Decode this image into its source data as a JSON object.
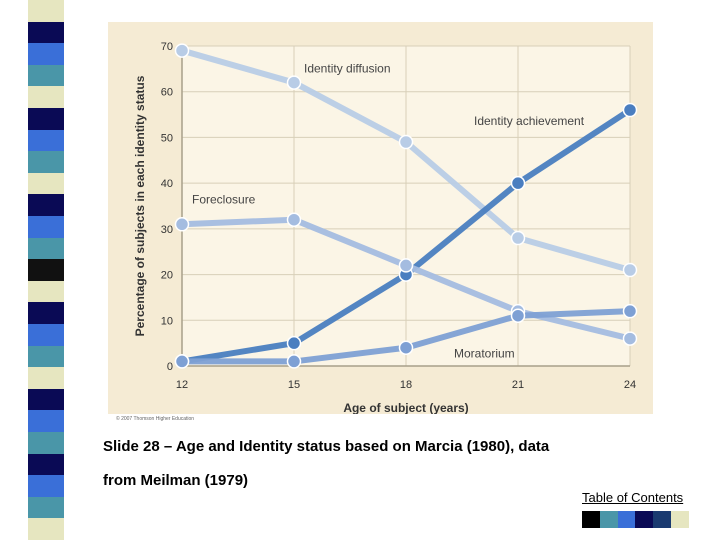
{
  "slide": {
    "caption_line1": "Slide 28 – Age and Identity status based on Marcia (1980), data",
    "caption_line2": "from Meilman (1979)",
    "toc_link": "Table of Contents",
    "copyright": "© 2007 Thomson Higher Education"
  },
  "decor": {
    "stripe_colors": [
      "#e6e6c0",
      "#0a0a55",
      "#3a6fd8",
      "#4a96a8",
      "#e6e6c0",
      "#0a0a55",
      "#3a6fd8",
      "#4a96a8",
      "#e6e6c0",
      "#0a0a55",
      "#3a6fd8",
      "#4a96a8",
      "#111111",
      "#e6e6c0",
      "#0a0a55",
      "#3a6fd8",
      "#4a96a8",
      "#e6e6c0",
      "#0a0a55",
      "#3a6fd8",
      "#4a96a8",
      "#0a0a55",
      "#3a6fd8",
      "#4a96a8",
      "#e6e6c0"
    ],
    "swatch_colors": [
      "#000000",
      "#4a96a8",
      "#3a6fd8",
      "#0a0a55",
      "#1a3a70",
      "#e6e6c0",
      "#ffffff"
    ]
  },
  "chart_data": {
    "type": "line",
    "xlabel": "Age of subject (years)",
    "ylabel": "Percentage of subjects in each identity status",
    "x": [
      12,
      15,
      18,
      21,
      24
    ],
    "xlim": [
      12,
      24
    ],
    "ylim": [
      0,
      70
    ],
    "yticks": [
      0,
      10,
      20,
      30,
      40,
      50,
      60,
      70
    ],
    "grid": true,
    "series": [
      {
        "name": "Identity diffusion",
        "values": [
          69,
          62,
          49,
          28,
          21
        ],
        "color": "#b8cce6"
      },
      {
        "name": "Identity achievement",
        "values": [
          1,
          5,
          20,
          40,
          56
        ],
        "color": "#4a7ec0"
      },
      {
        "name": "Foreclosure",
        "values": [
          31,
          32,
          22,
          12,
          6
        ],
        "color": "#a4bce0"
      },
      {
        "name": "Moratorium",
        "values": [
          1,
          1,
          4,
          11,
          12
        ],
        "color": "#7ea0d4"
      }
    ]
  }
}
